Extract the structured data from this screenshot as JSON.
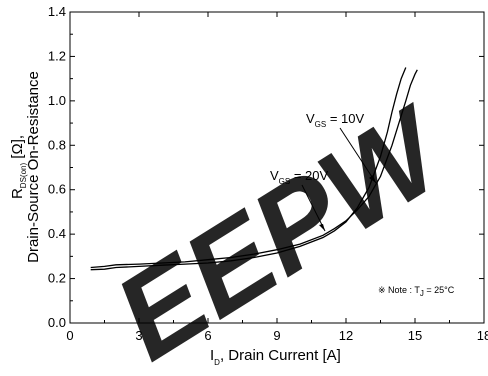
{
  "chart_data": {
    "type": "line",
    "xlabel_prefix": "I",
    "xlabel_sub": "D",
    "xlabel_rest": ", Drain Current  [A]",
    "ylabel_line1_prefix": "R",
    "ylabel_line1_sub": "DS(on)",
    "ylabel_line1_rest": " [Ω],",
    "ylabel_line2": "Drain-Source On-Resistance",
    "xlim": [
      0,
      18
    ],
    "ylim": [
      0.0,
      1.4
    ],
    "x_ticks": [
      "0",
      "3",
      "6",
      "9",
      "12",
      "15",
      "18"
    ],
    "y_ticks": [
      "0.0",
      "0.2",
      "0.4",
      "0.6",
      "0.8",
      "1.0",
      "1.2",
      "1.4"
    ],
    "grid": false,
    "series": [
      {
        "name_prefix": "V",
        "name_sub": "GS",
        "name_rest": " = 10V",
        "x": [
          0.9,
          1.5,
          2,
          3,
          4,
          5,
          6,
          7,
          8,
          9,
          10,
          11,
          11.5,
          12,
          12.5,
          13,
          13.5,
          14,
          14.3,
          14.6,
          14.8,
          15.0,
          15.1
        ],
        "y": [
          0.25,
          0.255,
          0.262,
          0.265,
          0.27,
          0.275,
          0.285,
          0.295,
          0.31,
          0.33,
          0.355,
          0.395,
          0.425,
          0.46,
          0.51,
          0.57,
          0.66,
          0.8,
          0.9,
          1.0,
          1.07,
          1.12,
          1.14
        ]
      },
      {
        "name_prefix": "V",
        "name_sub": "GS",
        "name_rest": " = 20V",
        "x": [
          0.9,
          1.5,
          2,
          3,
          4,
          5,
          6,
          7,
          8,
          9,
          10,
          11,
          11.5,
          12,
          12.5,
          13,
          13.5,
          13.8,
          14.0,
          14.2,
          14.4,
          14.6
        ],
        "y": [
          0.24,
          0.242,
          0.25,
          0.255,
          0.26,
          0.265,
          0.27,
          0.28,
          0.295,
          0.315,
          0.345,
          0.385,
          0.415,
          0.455,
          0.52,
          0.61,
          0.75,
          0.86,
          0.95,
          1.03,
          1.1,
          1.15
        ]
      }
    ],
    "annotation": {
      "symbol": "※",
      "prefix": " Note : T",
      "sub": "J",
      "rest": " = 25°C"
    },
    "watermark": "EEPW",
    "watermark_color": "#ee1c25"
  }
}
